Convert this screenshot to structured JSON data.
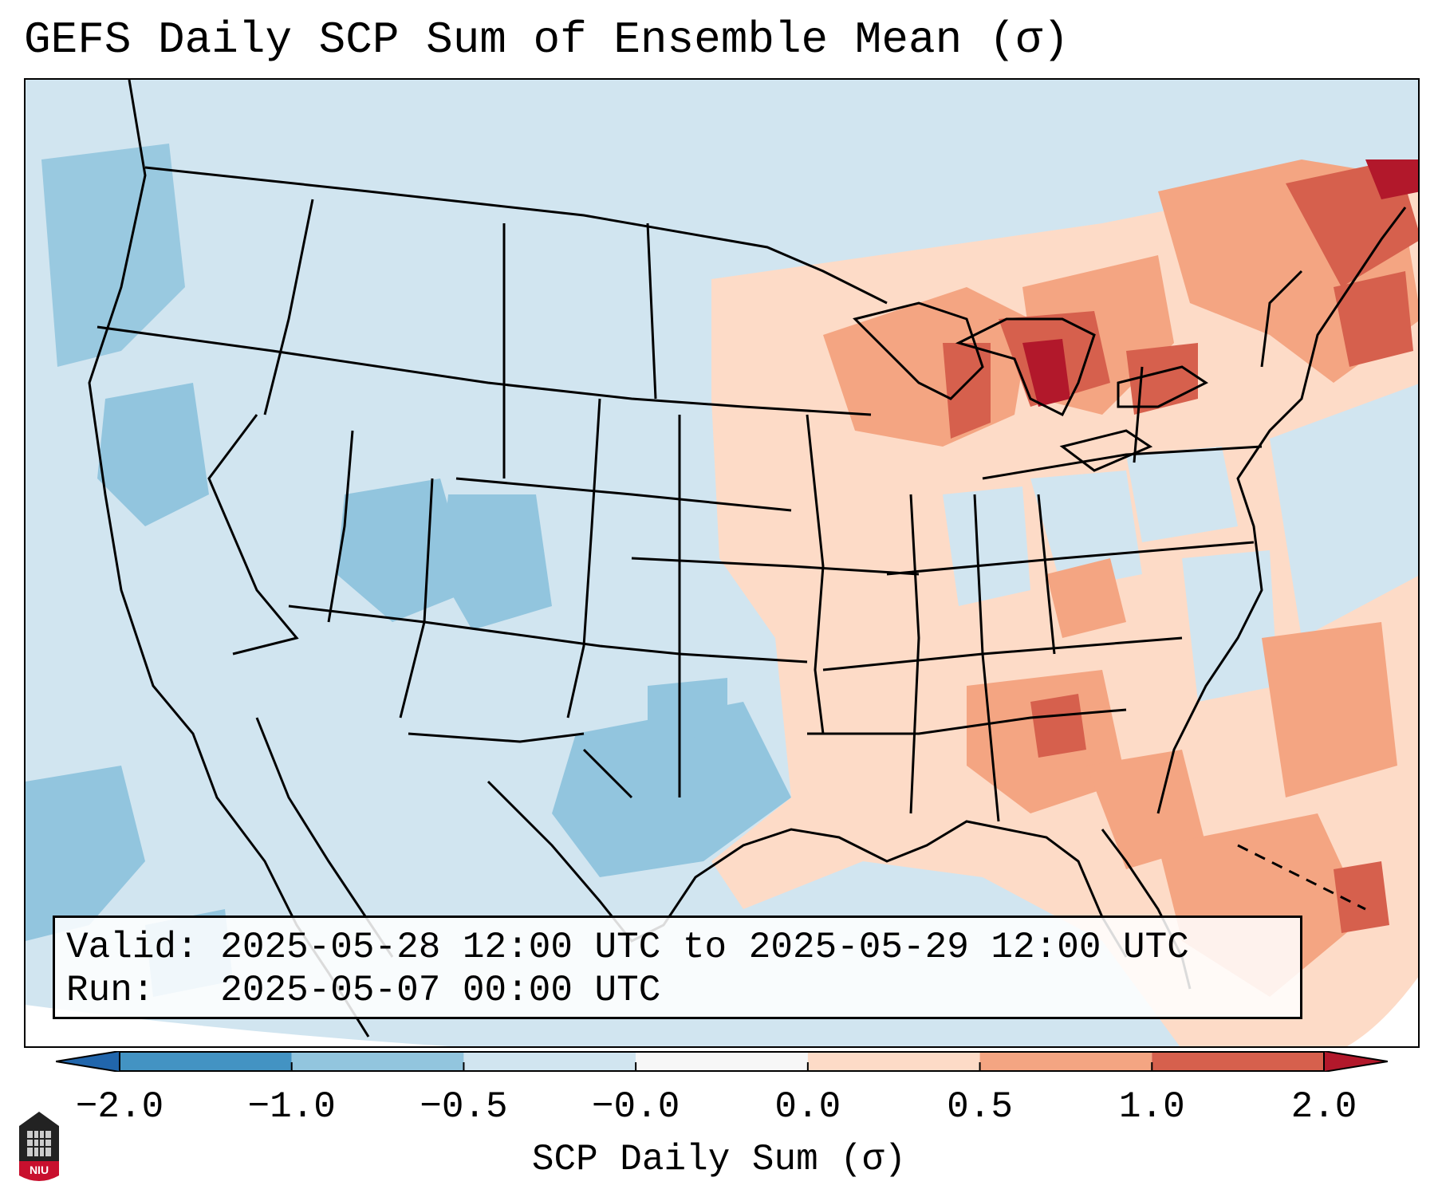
{
  "title": "GEFS Daily SCP Sum of Ensemble Mean (σ)",
  "info": {
    "valid_label": "Valid:",
    "valid_value": "2025-05-28 12:00 UTC to 2025-05-29 12:00 UTC",
    "run_label": "Run:",
    "run_value": "2025-05-07 00:00 UTC"
  },
  "colorbar": {
    "label": "SCP Daily Sum (σ)",
    "ticks": [
      "−2.0",
      "−1.0",
      "−0.5",
      "−0.0",
      "0.0",
      "0.5",
      "1.0",
      "2.0"
    ],
    "bin_colors": [
      "#4393c3",
      "#92c5de",
      "#d1e5f0",
      "#f7f7f7",
      "#fddbc7",
      "#f4a582",
      "#d6604d"
    ],
    "under_color": "#2166ac",
    "over_color": "#b2182b"
  },
  "map": {
    "ocean_color": "#d1e5f0",
    "projection_border_color": "#ffffff"
  },
  "logo": {
    "text": "NIU",
    "icon": "niu-logo-icon"
  }
}
